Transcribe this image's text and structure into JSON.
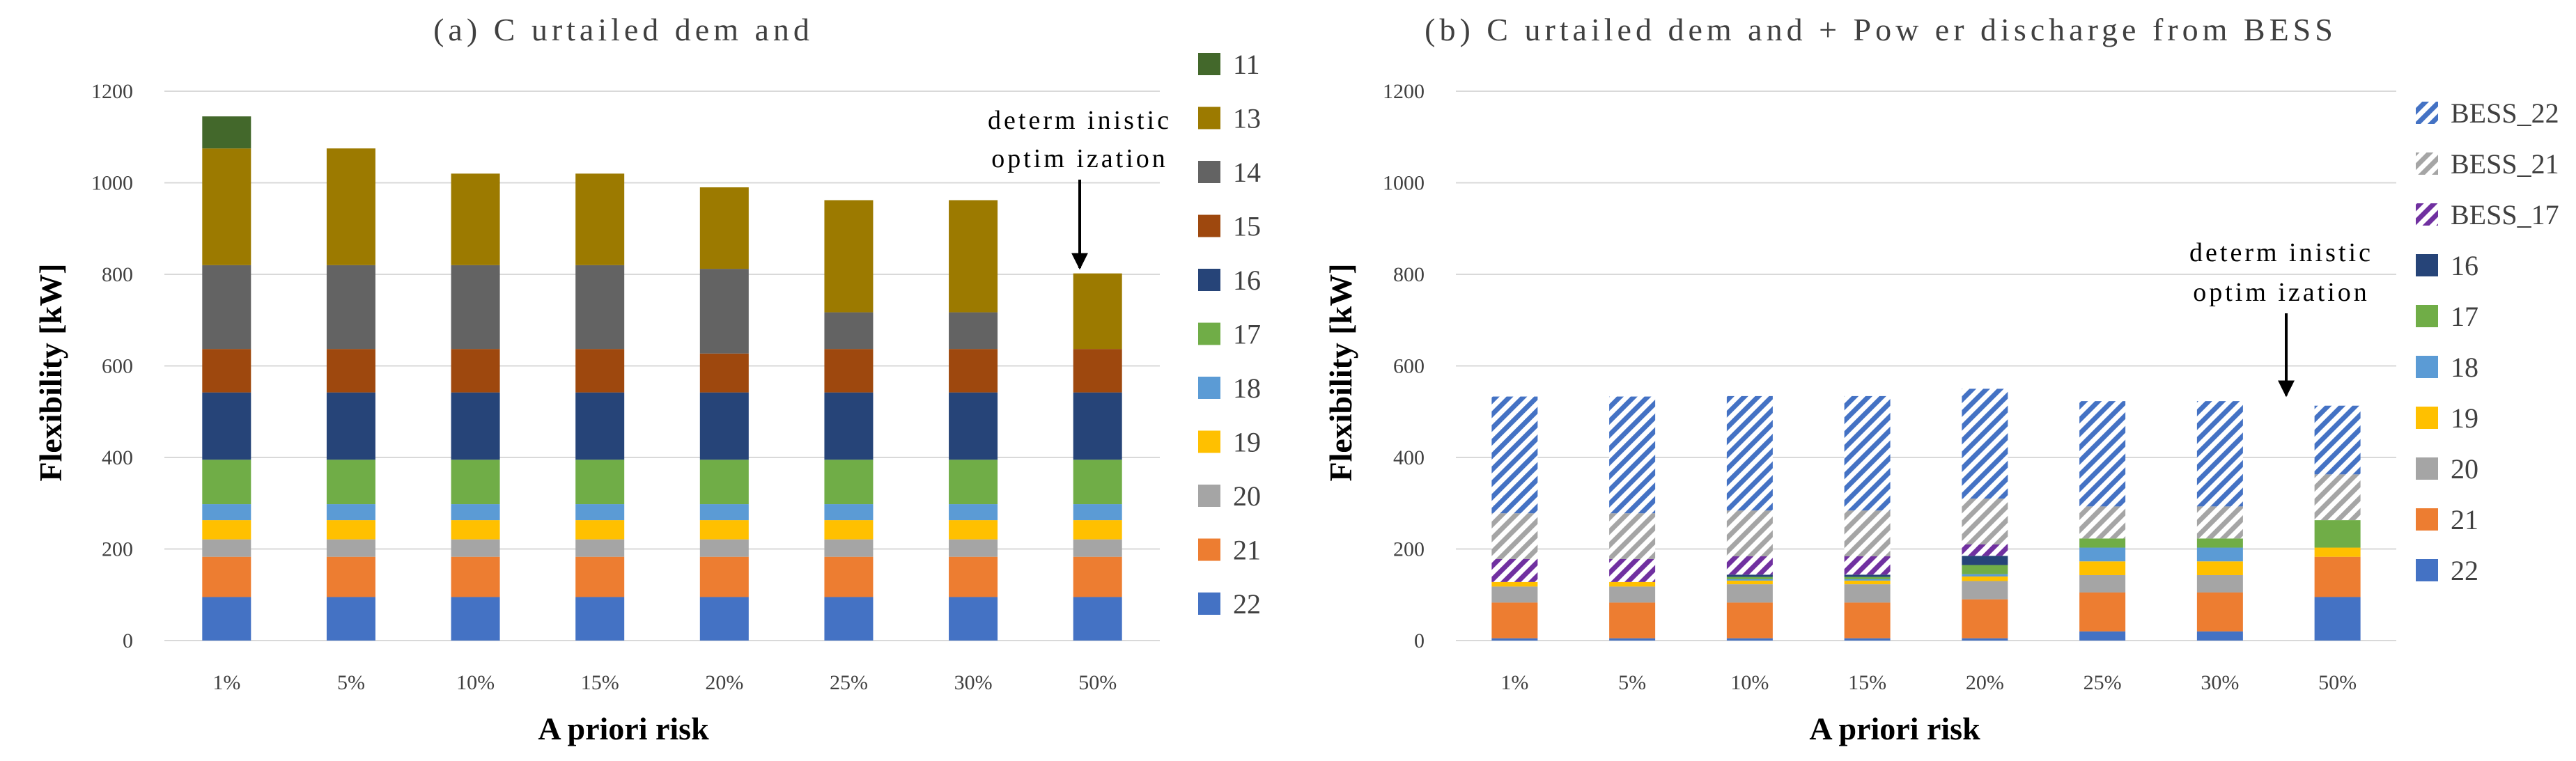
{
  "colors": {
    "11": "#43682b",
    "13": "#9c7a00",
    "14": "#636363",
    "15": "#9e480e",
    "16": "#264478",
    "17": "#70ad47",
    "18": "#5b9bd5",
    "19": "#ffc000",
    "20": "#a5a5a5",
    "21": "#ed7d31",
    "22": "#4472c4",
    "BESS_22": "#4472c4",
    "BESS_21": "#a5a5a5",
    "BESS_17": "#7030a0"
  },
  "chart_data": [
    {
      "type": "bar",
      "stacked": true,
      "title": "(a) C urtailed dem and",
      "xlabel": "A priori risk",
      "ylabel": "Flexibility [kW]",
      "categories": [
        "1%",
        "5%",
        "10%",
        "15%",
        "20%",
        "25%",
        "30%",
        "50%"
      ],
      "ylim": [
        0,
        1200
      ],
      "yticks": [
        "0",
        "200",
        "400",
        "600",
        "800",
        "1000",
        "1200"
      ],
      "legend": [
        "11",
        "13",
        "14",
        "15",
        "16",
        "17",
        "18",
        "19",
        "20",
        "21",
        "22"
      ],
      "series": [
        {
          "name": "22",
          "values": [
            95,
            95,
            95,
            95,
            95,
            95,
            95,
            95
          ]
        },
        {
          "name": "21",
          "values": [
            88,
            88,
            88,
            88,
            88,
            88,
            88,
            88
          ]
        },
        {
          "name": "20",
          "values": [
            38,
            38,
            38,
            38,
            38,
            38,
            38,
            38
          ]
        },
        {
          "name": "19",
          "values": [
            42,
            42,
            42,
            42,
            42,
            42,
            42,
            42
          ]
        },
        {
          "name": "18",
          "values": [
            35,
            35,
            35,
            35,
            35,
            35,
            35,
            35
          ]
        },
        {
          "name": "17",
          "values": [
            97,
            97,
            97,
            97,
            97,
            97,
            97,
            97
          ]
        },
        {
          "name": "16",
          "values": [
            147,
            147,
            147,
            147,
            147,
            147,
            147,
            147
          ]
        },
        {
          "name": "15",
          "values": [
            95,
            95,
            95,
            95,
            85,
            95,
            95,
            95
          ]
        },
        {
          "name": "14",
          "values": [
            183,
            183,
            183,
            183,
            185,
            80,
            80,
            0
          ]
        },
        {
          "name": "13",
          "values": [
            255,
            255,
            200,
            200,
            178,
            245,
            245,
            165
          ]
        },
        {
          "name": "11",
          "values": [
            70,
            0,
            0,
            0,
            0,
            0,
            0,
            0
          ]
        }
      ],
      "annotation": [
        "determ inistic",
        "optim ization"
      ],
      "annotation_category": "50%"
    },
    {
      "type": "bar",
      "stacked": true,
      "title": "(b) C urtailed dem and + Pow er discharge from  BESS",
      "xlabel": "A priori risk",
      "ylabel": "Flexibility [kW]",
      "categories": [
        "1%",
        "5%",
        "10%",
        "15%",
        "20%",
        "25%",
        "30%",
        "50%"
      ],
      "ylim": [
        0,
        1200
      ],
      "yticks": [
        "0",
        "200",
        "400",
        "600",
        "800",
        "1000",
        "1200"
      ],
      "legend": [
        "BESS_22",
        "BESS_21",
        "BESS_17",
        "16",
        "17",
        "18",
        "19",
        "20",
        "21",
        "22"
      ],
      "series": [
        {
          "name": "22",
          "values": [
            5,
            5,
            5,
            5,
            5,
            20,
            20,
            95
          ]
        },
        {
          "name": "21",
          "values": [
            78,
            78,
            78,
            78,
            85,
            85,
            85,
            88
          ]
        },
        {
          "name": "20",
          "values": [
            35,
            35,
            40,
            40,
            40,
            38,
            38,
            0
          ]
        },
        {
          "name": "19",
          "values": [
            10,
            10,
            8,
            8,
            10,
            30,
            30,
            20
          ]
        },
        {
          "name": "18",
          "values": [
            0,
            0,
            3,
            3,
            5,
            30,
            30,
            0
          ]
        },
        {
          "name": "17",
          "values": [
            0,
            0,
            5,
            5,
            20,
            20,
            20,
            60
          ]
        },
        {
          "name": "16",
          "values": [
            0,
            0,
            5,
            5,
            20,
            0,
            0,
            0
          ]
        },
        {
          "name": "BESS_17",
          "values": [
            50,
            50,
            40,
            40,
            25,
            0,
            0,
            0
          ]
        },
        {
          "name": "BESS_21",
          "values": [
            100,
            100,
            100,
            100,
            100,
            70,
            70,
            100
          ]
        },
        {
          "name": "BESS_22",
          "values": [
            255,
            255,
            250,
            250,
            240,
            230,
            230,
            150
          ]
        }
      ],
      "annotation": [
        "determ inistic",
        "optim ization"
      ],
      "annotation_category": "50%"
    }
  ]
}
